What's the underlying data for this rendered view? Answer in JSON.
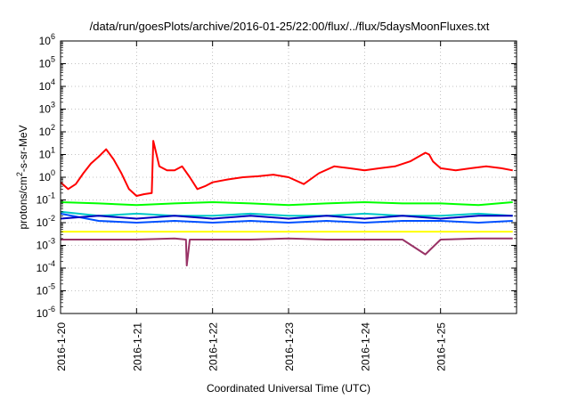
{
  "chart_data": {
    "type": "line",
    "title": "/data/run/goesPlots/archive/2016-01-25/22:00/flux/../flux/5daysMoonFluxes.txt",
    "xlabel": "Coordinated Universal Time (UTC)",
    "ylabel_main": "protons/cm",
    "ylabel_sup": "2",
    "ylabel_rest": "-s-sr-MeV",
    "yscale": "log",
    "ylim": [
      1e-06,
      1000000.0
    ],
    "xlim": [
      "2016-1-20",
      "2016-1-26"
    ],
    "grid": true,
    "y_ticks": [
      {
        "base": "10",
        "exp": "-6"
      },
      {
        "base": "10",
        "exp": "-5"
      },
      {
        "base": "10",
        "exp": "-4"
      },
      {
        "base": "10",
        "exp": "-3"
      },
      {
        "base": "10",
        "exp": "-2"
      },
      {
        "base": "10",
        "exp": "-1"
      },
      {
        "base": "10",
        "exp": "0"
      },
      {
        "base": "10",
        "exp": "1"
      },
      {
        "base": "10",
        "exp": "2"
      },
      {
        "base": "10",
        "exp": "3"
      },
      {
        "base": "10",
        "exp": "4"
      },
      {
        "base": "10",
        "exp": "5"
      },
      {
        "base": "10",
        "exp": "6"
      }
    ],
    "x_ticks": [
      "2016-1-20",
      "2016-1-21",
      "2016-1-22",
      "2016-1-23",
      "2016-1-24",
      "2016-1-25"
    ],
    "series": [
      {
        "color": "#ff0000",
        "x": [
          0,
          0.1,
          0.2,
          0.3,
          0.4,
          0.5,
          0.6,
          0.7,
          0.8,
          0.9,
          1.0,
          1.1,
          1.2,
          1.22,
          1.3,
          1.4,
          1.5,
          1.6,
          1.7,
          1.8,
          1.9,
          2.0,
          2.2,
          2.4,
          2.6,
          2.8,
          3.0,
          3.2,
          3.4,
          3.6,
          3.8,
          4.0,
          4.2,
          4.4,
          4.6,
          4.8,
          4.85,
          4.9,
          5.0,
          5.2,
          5.4,
          5.6,
          5.8,
          5.95
        ],
        "values": [
          0.6,
          0.3,
          0.5,
          1.5,
          4,
          8,
          17,
          6,
          1.5,
          0.3,
          0.15,
          0.18,
          0.2,
          40,
          3,
          2,
          2,
          3,
          1,
          0.3,
          0.4,
          0.6,
          0.8,
          1,
          1.1,
          1.3,
          1,
          0.5,
          1.5,
          3,
          2.5,
          2,
          2.5,
          3,
          5,
          12,
          10,
          5,
          2.5,
          2,
          2.5,
          3,
          2.5,
          2
        ]
      },
      {
        "color": "#00ff00",
        "x": [
          0,
          0.5,
          1.0,
          1.5,
          2.0,
          2.5,
          3.0,
          3.5,
          4.0,
          4.5,
          5.0,
          5.5,
          5.95
        ],
        "values": [
          0.08,
          0.07,
          0.06,
          0.07,
          0.08,
          0.07,
          0.06,
          0.07,
          0.08,
          0.07,
          0.07,
          0.06,
          0.08
        ]
      },
      {
        "color": "#00c8c8",
        "x": [
          0,
          0.5,
          1.0,
          1.5,
          2.0,
          2.5,
          3.0,
          3.5,
          4.0,
          4.5,
          5.0,
          5.5,
          5.95
        ],
        "values": [
          0.03,
          0.02,
          0.025,
          0.02,
          0.02,
          0.025,
          0.02,
          0.02,
          0.025,
          0.02,
          0.02,
          0.025,
          0.02
        ]
      },
      {
        "color": "#0050ff",
        "x": [
          0,
          0.5,
          1.0,
          1.5,
          2.0,
          2.5,
          3.0,
          3.5,
          4.0,
          4.5,
          5.0,
          5.5,
          5.95
        ],
        "values": [
          0.025,
          0.012,
          0.01,
          0.012,
          0.01,
          0.012,
          0.01,
          0.012,
          0.01,
          0.012,
          0.012,
          0.01,
          0.012
        ]
      },
      {
        "color": "#0000c0",
        "x": [
          0,
          0.5,
          1.0,
          1.5,
          2.0,
          2.5,
          3.0,
          3.5,
          4.0,
          4.5,
          5.0,
          5.5,
          5.95
        ],
        "values": [
          0.015,
          0.02,
          0.015,
          0.02,
          0.015,
          0.02,
          0.015,
          0.02,
          0.015,
          0.02,
          0.015,
          0.02,
          0.02
        ]
      },
      {
        "color": "#ffff00",
        "x": [
          0,
          5.95
        ],
        "values": [
          0.004,
          0.004
        ]
      },
      {
        "color": "#993366",
        "x": [
          0,
          0.5,
          1.0,
          1.5,
          1.65,
          1.66,
          1.7,
          2.0,
          2.5,
          3.0,
          3.5,
          4.0,
          4.5,
          4.8,
          5.0,
          5.5,
          5.95
        ],
        "values": [
          0.0018,
          0.0018,
          0.0018,
          0.002,
          0.0018,
          0.00013,
          0.0018,
          0.0018,
          0.0018,
          0.002,
          0.0018,
          0.0018,
          0.0018,
          0.0004,
          0.0018,
          0.002,
          0.002
        ]
      }
    ]
  }
}
